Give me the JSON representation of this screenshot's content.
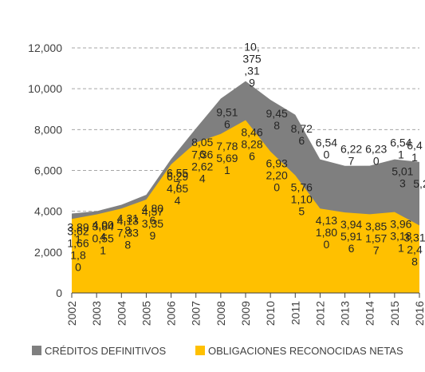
{
  "chart_data": {
    "type": "area",
    "title": "",
    "xlabel": "",
    "ylabel": "",
    "ylim": [
      0,
      12000
    ],
    "yticks": [
      0,
      2000,
      4000,
      6000,
      8000,
      10000,
      12000
    ],
    "ytick_labels": [
      "0",
      "2,000",
      "4,000",
      "6,000",
      "8,000",
      "10,000",
      "12,000"
    ],
    "grid": true,
    "legend_position": "bottom",
    "categories": [
      "2002",
      "2003",
      "2004",
      "2005",
      "2006",
      "2007",
      "2008",
      "2009",
      "2010",
      "2011",
      "2012",
      "2013",
      "2014",
      "2015",
      "2016"
    ],
    "series": [
      {
        "name": "CRÉDITOS DEFINITIVOS",
        "color": "#7f7f7f",
        "values": [
          3891,
          4004,
          4318,
          4806,
          6557,
          8056,
          9516,
          10375,
          9458,
          8726,
          6540,
          6227,
          6230,
          6541,
          6417
        ],
        "labels": [
          "3,89\n1",
          "4,00\n4",
          "4,31\n8",
          "4,80\n6",
          "6,55\n7",
          "8,05\n6",
          "9,51\n6",
          "10,\n375\n,31\n9",
          "9,45\n8",
          "8,72\n6",
          "6,54\n0",
          "6,22\n7",
          "6,23\n0",
          "6,54\n1",
          "6,4\n1"
        ]
      },
      {
        "name": "OBLIGACIONES RECONOCIDAS NETAS",
        "color": "#ffc000",
        "values": [
          3623,
          3845,
          4133,
          4574,
          6294,
          7362,
          7786,
          8462,
          6930,
          5760,
          4135,
          3944,
          3855,
          3963,
          3310
        ],
        "labels": [
          "3,62\n1,66\n1,8\n0",
          "3,84\n0,55\n1",
          "4,13\n7,33\n8",
          "4,57\n3,35\n9",
          "6,29\n4,85\n4",
          "7,36\n2,62\n4",
          "7,78\n5,69\n1",
          "8,46\n8,28\n6",
          "6,93\n2,20\n0",
          "5,76\n1,10\n5",
          "4,13\n1,80\n0",
          "3,94\n5,91\n6",
          "3,85\n1,57\n7",
          "3,96\n3,18\n1",
          "3,31\n2,4\n8"
        ]
      }
    ],
    "annotations": [
      "5,01\n3",
      "5,2"
    ]
  },
  "legend": {
    "items": [
      {
        "label": "CRÉDITOS DEFINITIVOS",
        "color": "#7f7f7f"
      },
      {
        "label": "OBLIGACIONES RECONOCIDAS NETAS",
        "color": "#ffc000"
      }
    ]
  }
}
